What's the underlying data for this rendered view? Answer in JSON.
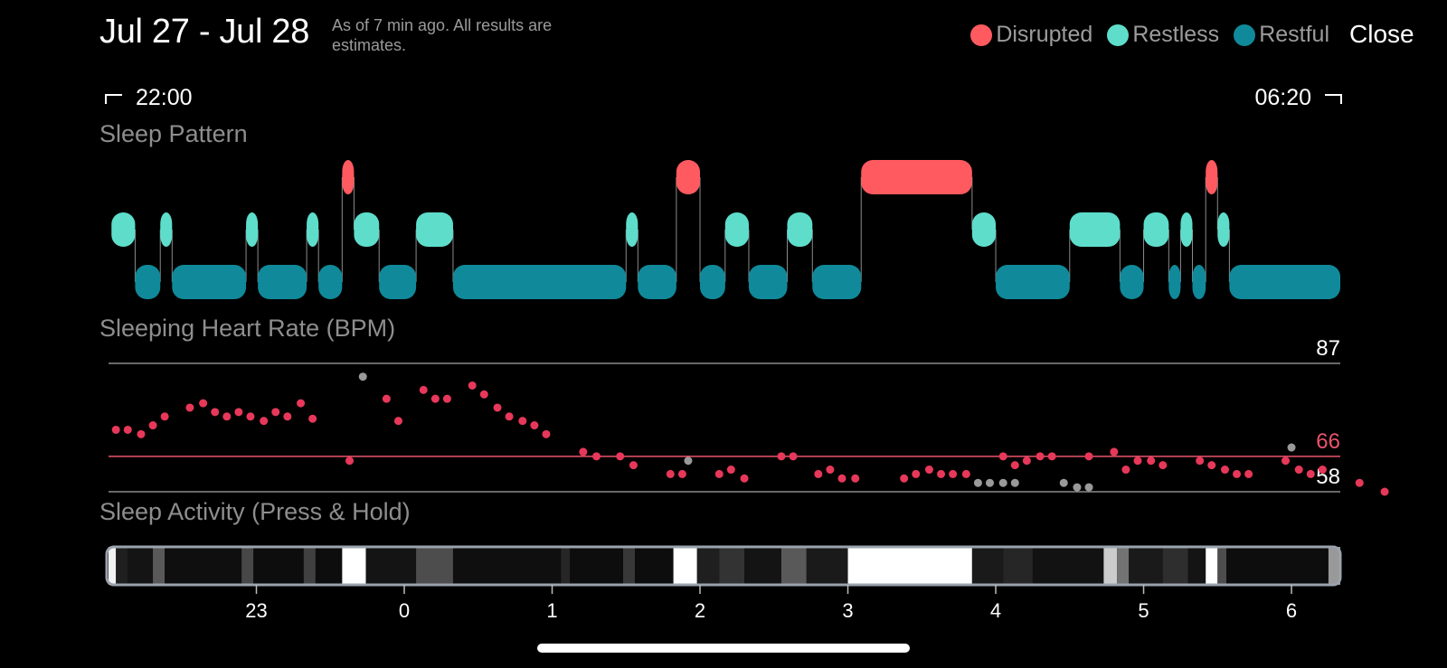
{
  "header": {
    "title": "Jul 27 - Jul 28",
    "subtitle": "As of 7 min ago. All results are estimates.",
    "close_label": "Close"
  },
  "legend": [
    {
      "label": "Disrupted",
      "color": "#FF5A5F"
    },
    {
      "label": "Restless",
      "color": "#5EDDCB"
    },
    {
      "label": "Restful",
      "color": "#108A9A"
    }
  ],
  "time_range": {
    "start": "22:00",
    "end": "06:20"
  },
  "icons": {
    "start_bracket": "bracket-left-icon",
    "end_bracket": "bracket-right-icon"
  },
  "sections": {
    "sleep_pattern": "Sleep Pattern",
    "heart_rate": "Sleeping Heart Rate (BPM)",
    "activity": "Sleep Activity (Press & Hold)"
  },
  "chart_data": [
    {
      "type": "timeline",
      "name": "Sleep Pattern",
      "x_unit": "hours (timeline from 22:00)",
      "xlim": [
        22.0,
        30.33
      ],
      "levels": [
        "Disrupted",
        "Restless",
        "Restful"
      ],
      "segments": [
        {
          "start": 22.02,
          "end": 22.18,
          "state": "Restless"
        },
        {
          "start": 22.18,
          "end": 22.35,
          "state": "Restful"
        },
        {
          "start": 22.35,
          "end": 22.43,
          "state": "Restless"
        },
        {
          "start": 22.43,
          "end": 22.93,
          "state": "Restful"
        },
        {
          "start": 22.93,
          "end": 23.01,
          "state": "Restless"
        },
        {
          "start": 23.01,
          "end": 23.34,
          "state": "Restful"
        },
        {
          "start": 23.34,
          "end": 23.42,
          "state": "Restless"
        },
        {
          "start": 23.42,
          "end": 23.58,
          "state": "Restful"
        },
        {
          "start": 23.58,
          "end": 23.66,
          "state": "Disrupted"
        },
        {
          "start": 23.66,
          "end": 23.83,
          "state": "Restless"
        },
        {
          "start": 23.83,
          "end": 24.08,
          "state": "Restful"
        },
        {
          "start": 24.08,
          "end": 24.33,
          "state": "Restless"
        },
        {
          "start": 24.33,
          "end": 25.5,
          "state": "Restful"
        },
        {
          "start": 25.5,
          "end": 25.58,
          "state": "Restless"
        },
        {
          "start": 25.58,
          "end": 25.84,
          "state": "Restful"
        },
        {
          "start": 25.84,
          "end": 26.0,
          "state": "Disrupted"
        },
        {
          "start": 26.0,
          "end": 26.17,
          "state": "Restful"
        },
        {
          "start": 26.17,
          "end": 26.33,
          "state": "Restless"
        },
        {
          "start": 26.33,
          "end": 26.59,
          "state": "Restful"
        },
        {
          "start": 26.59,
          "end": 26.76,
          "state": "Restless"
        },
        {
          "start": 26.76,
          "end": 27.09,
          "state": "Restful"
        },
        {
          "start": 27.09,
          "end": 27.84,
          "state": "Disrupted"
        },
        {
          "start": 27.84,
          "end": 28.0,
          "state": "Restless"
        },
        {
          "start": 28.0,
          "end": 28.5,
          "state": "Restful"
        },
        {
          "start": 28.5,
          "end": 28.84,
          "state": "Restless"
        },
        {
          "start": 28.84,
          "end": 29.0,
          "state": "Restful"
        },
        {
          "start": 29.0,
          "end": 29.17,
          "state": "Restless"
        },
        {
          "start": 29.17,
          "end": 29.25,
          "state": "Restful"
        },
        {
          "start": 29.25,
          "end": 29.33,
          "state": "Restless"
        },
        {
          "start": 29.33,
          "end": 29.42,
          "state": "Restful"
        },
        {
          "start": 29.42,
          "end": 29.5,
          "state": "Disrupted"
        },
        {
          "start": 29.5,
          "end": 29.58,
          "state": "Restless"
        },
        {
          "start": 29.58,
          "end": 30.33,
          "state": "Restful"
        }
      ]
    },
    {
      "type": "scatter",
      "name": "Sleeping Heart Rate (BPM)",
      "x_unit": "hours (timeline from 22:00)",
      "xlim": [
        22.0,
        30.33
      ],
      "ylim": [
        58,
        87
      ],
      "reference_lines": [
        {
          "value": 87,
          "label": "87",
          "color": "#8a8a8a",
          "label_color": "#ffffff"
        },
        {
          "value": 66,
          "label": "66",
          "color": "#E8546C",
          "label_color": "#E8546C"
        },
        {
          "value": 58,
          "label": "58",
          "color": "#8a8a8a",
          "label_color": "#ffffff"
        }
      ],
      "point_color": "#E8385A",
      "gray_color": "#9a9a9a",
      "points": [
        [
          22.05,
          72
        ],
        [
          22.13,
          72
        ],
        [
          22.22,
          71
        ],
        [
          22.3,
          73
        ],
        [
          22.38,
          75
        ],
        [
          22.55,
          77
        ],
        [
          22.64,
          78
        ],
        [
          22.72,
          76
        ],
        [
          22.8,
          75
        ],
        [
          22.88,
          76
        ],
        [
          22.96,
          75
        ],
        [
          23.05,
          74
        ],
        [
          23.13,
          76
        ],
        [
          23.21,
          75
        ],
        [
          23.3,
          78
        ],
        [
          23.38,
          74.5
        ],
        [
          23.63,
          65
        ],
        [
          23.88,
          79
        ],
        [
          23.96,
          74
        ],
        [
          24.13,
          81
        ],
        [
          24.21,
          79
        ],
        [
          24.29,
          79
        ],
        [
          24.46,
          82
        ],
        [
          24.54,
          80
        ],
        [
          24.63,
          77
        ],
        [
          24.71,
          75
        ],
        [
          24.8,
          74
        ],
        [
          24.88,
          73
        ],
        [
          24.96,
          71
        ],
        [
          25.21,
          67
        ],
        [
          25.3,
          66
        ],
        [
          25.46,
          66
        ],
        [
          25.55,
          64
        ],
        [
          25.8,
          62
        ],
        [
          25.88,
          62
        ],
        [
          26.13,
          62
        ],
        [
          26.21,
          63
        ],
        [
          26.3,
          61
        ],
        [
          26.55,
          66
        ],
        [
          26.63,
          66
        ],
        [
          26.8,
          62
        ],
        [
          26.88,
          63
        ],
        [
          26.96,
          61
        ],
        [
          27.05,
          61
        ],
        [
          27.38,
          61
        ],
        [
          27.46,
          62
        ],
        [
          27.55,
          63
        ],
        [
          27.63,
          62
        ],
        [
          27.71,
          62
        ],
        [
          27.8,
          62
        ],
        [
          28.05,
          66
        ],
        [
          28.13,
          64
        ],
        [
          28.21,
          65
        ],
        [
          28.3,
          66
        ],
        [
          28.38,
          66
        ],
        [
          28.63,
          66
        ],
        [
          28.8,
          67
        ],
        [
          28.88,
          63
        ],
        [
          28.96,
          65
        ],
        [
          29.05,
          65
        ],
        [
          29.13,
          64
        ],
        [
          29.38,
          65
        ],
        [
          29.46,
          64
        ],
        [
          29.55,
          63
        ],
        [
          29.63,
          62
        ],
        [
          29.71,
          62
        ],
        [
          29.96,
          65
        ],
        [
          30.05,
          63
        ],
        [
          30.13,
          62
        ],
        [
          30.21,
          63
        ],
        [
          30.46,
          60
        ],
        [
          30.63,
          58
        ]
      ],
      "gray_points": [
        [
          23.72,
          84
        ],
        [
          25.92,
          65
        ],
        [
          27.88,
          60
        ],
        [
          27.96,
          60
        ],
        [
          28.05,
          60
        ],
        [
          28.13,
          60
        ],
        [
          28.46,
          60
        ],
        [
          28.55,
          59
        ],
        [
          28.63,
          59
        ],
        [
          30.0,
          68
        ]
      ]
    },
    {
      "type": "heatmap",
      "name": "Sleep Activity (Press & Hold)",
      "x_unit": "hours (timeline from 22:00)",
      "xlim": [
        22.0,
        30.33
      ],
      "tick_labels": [
        "23",
        "0",
        "1",
        "2",
        "3",
        "4",
        "5",
        "6"
      ],
      "tick_values": [
        23,
        24,
        25,
        26,
        27,
        28,
        29,
        30
      ],
      "bands": [
        {
          "start": 22.0,
          "end": 22.05,
          "level": 0.95
        },
        {
          "start": 22.05,
          "end": 22.13,
          "level": 0.12
        },
        {
          "start": 22.13,
          "end": 22.3,
          "level": 0.08
        },
        {
          "start": 22.3,
          "end": 22.38,
          "level": 0.35
        },
        {
          "start": 22.38,
          "end": 22.9,
          "level": 0.06
        },
        {
          "start": 22.9,
          "end": 22.98,
          "level": 0.28
        },
        {
          "start": 22.98,
          "end": 23.32,
          "level": 0.05
        },
        {
          "start": 23.32,
          "end": 23.4,
          "level": 0.25
        },
        {
          "start": 23.4,
          "end": 23.58,
          "level": 0.05
        },
        {
          "start": 23.58,
          "end": 23.74,
          "level": 1.0
        },
        {
          "start": 23.74,
          "end": 24.08,
          "level": 0.08
        },
        {
          "start": 24.08,
          "end": 24.33,
          "level": 0.3
        },
        {
          "start": 24.33,
          "end": 25.06,
          "level": 0.06
        },
        {
          "start": 25.06,
          "end": 25.12,
          "level": 0.15
        },
        {
          "start": 25.12,
          "end": 25.48,
          "level": 0.05
        },
        {
          "start": 25.48,
          "end": 25.56,
          "level": 0.22
        },
        {
          "start": 25.56,
          "end": 25.82,
          "level": 0.05
        },
        {
          "start": 25.82,
          "end": 25.98,
          "level": 1.0
        },
        {
          "start": 25.98,
          "end": 26.13,
          "level": 0.12
        },
        {
          "start": 26.13,
          "end": 26.3,
          "level": 0.2
        },
        {
          "start": 26.3,
          "end": 26.55,
          "level": 0.08
        },
        {
          "start": 26.55,
          "end": 26.72,
          "level": 0.35
        },
        {
          "start": 26.72,
          "end": 27.0,
          "level": 0.1
        },
        {
          "start": 27.0,
          "end": 27.84,
          "level": 1.0
        },
        {
          "start": 27.84,
          "end": 28.05,
          "level": 0.1
        },
        {
          "start": 28.05,
          "end": 28.25,
          "level": 0.15
        },
        {
          "start": 28.25,
          "end": 28.73,
          "level": 0.07
        },
        {
          "start": 28.73,
          "end": 28.82,
          "level": 0.8
        },
        {
          "start": 28.82,
          "end": 28.9,
          "level": 0.45
        },
        {
          "start": 28.9,
          "end": 29.13,
          "level": 0.1
        },
        {
          "start": 29.13,
          "end": 29.3,
          "level": 0.18
        },
        {
          "start": 29.3,
          "end": 29.42,
          "level": 0.08
        },
        {
          "start": 29.42,
          "end": 29.5,
          "level": 1.0
        },
        {
          "start": 29.5,
          "end": 29.56,
          "level": 0.3
        },
        {
          "start": 29.56,
          "end": 30.25,
          "level": 0.05
        },
        {
          "start": 30.25,
          "end": 30.33,
          "level": 0.6
        }
      ]
    }
  ]
}
